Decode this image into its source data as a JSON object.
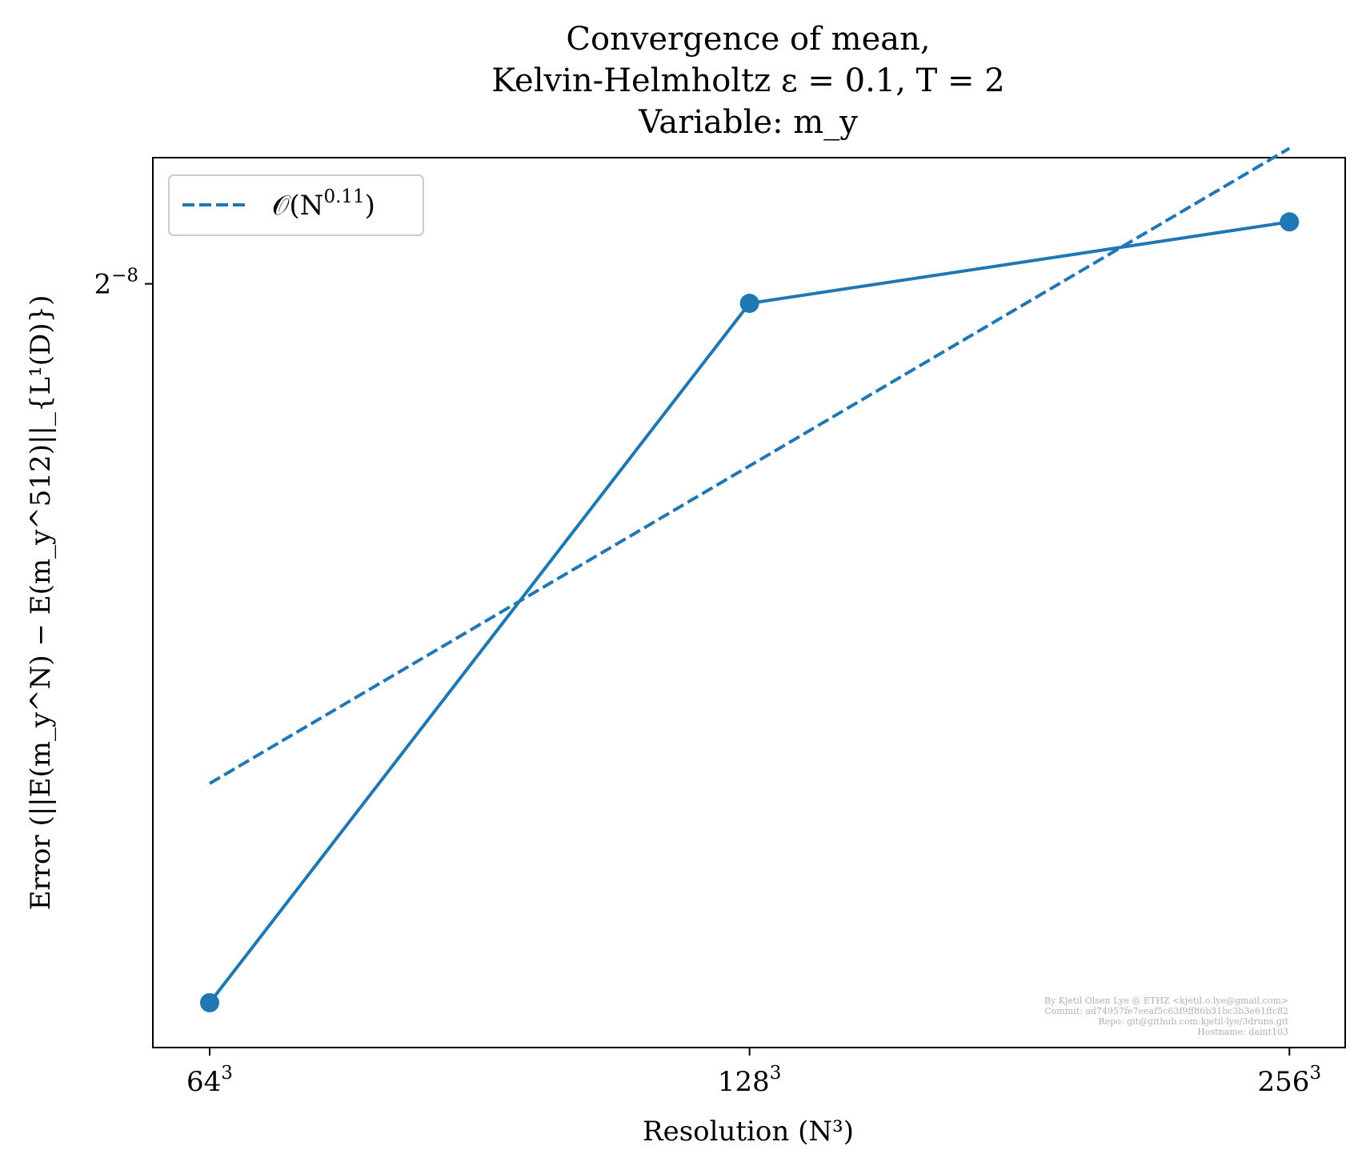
{
  "chart_data": {
    "type": "line",
    "title": [
      "Convergence of mean,",
      "Kelvin-Helmholtz ε = 0.1, T = 2",
      "Variable: m_y"
    ],
    "xlabel": "Resolution (N³)",
    "ylabel": "Error (||E(m_y^N) − E(m_y^512)||_{L¹(D)})",
    "x_scale": "log2",
    "y_scale": "log2",
    "x_ticks": [
      {
        "value": 64,
        "base": "64",
        "exp": "3"
      },
      {
        "value": 128,
        "base": "128",
        "exp": "3"
      },
      {
        "value": 256,
        "base": "256",
        "exp": "3"
      }
    ],
    "y_ticks": [
      {
        "value": 0.00390625,
        "base": "2",
        "exp": "−8"
      }
    ],
    "xlim": [
      59.5,
      275
    ],
    "ylim": [
      0.002215,
      0.00429
    ],
    "series": [
      {
        "name": "",
        "style": "solid",
        "marker": "circle",
        "color": "#1f77b4",
        "x": [
          64,
          128,
          256
        ],
        "y": [
          0.00229,
          0.00385,
          0.00409
        ]
      },
      {
        "name": "𝒪(N^0.11)",
        "style": "dashed",
        "marker": "none",
        "color": "#1f77b4",
        "x": [
          64,
          128,
          256
        ],
        "y": [
          0.002695,
          0.003412,
          0.00432
        ]
      }
    ],
    "legend": {
      "position": "top-left",
      "entries": [
        {
          "base": "𝒪(N",
          "exp": "0.11",
          "close": ")"
        }
      ]
    },
    "grid": false
  },
  "credits": [
    "By Kjetil Olsen Lye @ ETHZ <kjetil.o.lye@gmail.com>",
    "Commit: ad74957fe7eeaf5c63f9ff86b31bc3b3e61ffc82",
    "Repo: git@github.com:kjetil-lye/3druns.git",
    "Hostname: daint103"
  ]
}
